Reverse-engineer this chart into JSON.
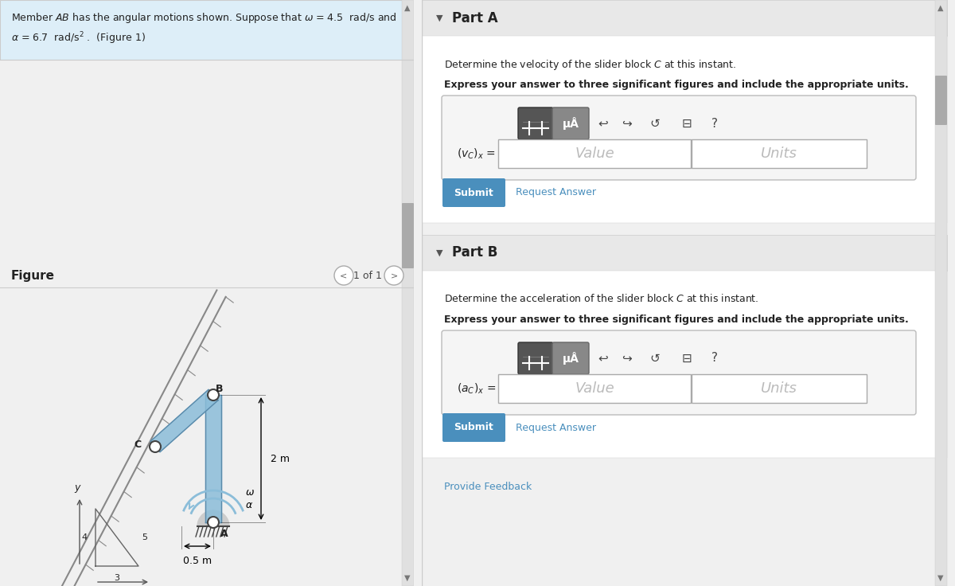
{
  "bg_color": "#f0f0f0",
  "left_panel_bg": "#ffffff",
  "right_panel_bg": "#f0f0f0",
  "header_bg": "#ddeef8",
  "problem_text_line1": "Member $AB$ has the angular motions shown. Suppose that $\\omega$ = 4.5  rad/s and",
  "problem_text_line2": "$\\alpha$ = 6.7  rad/s$^2$ .  (Figure 1)",
  "figure_label": "Figure",
  "nav_text": "1 of 1",
  "part_a_title": "Part A",
  "part_a_desc": "Determine the velocity of the slider block $C$ at this instant.",
  "part_a_bold": "Express your answer to three significant figures and include the appropriate units.",
  "part_a_label_a": "$(v_C)_x$",
  "part_b_title": "Part B",
  "part_b_desc": "Determine the acceleration of the slider block $C$ at this instant.",
  "part_b_bold": "Express your answer to three significant figures and include the appropriate units.",
  "part_b_label_a": "$(a_C)_x$",
  "submit_color": "#4a8fbd",
  "submit_text_color": "#ffffff",
  "link_color": "#4a8fbd",
  "dim_2m": "2 m",
  "dim_05m": "0.5 m",
  "member_color": "#8bbdd9",
  "member_edge_color": "#5a8aaa",
  "divider_color": "#cccccc",
  "part_header_bg": "#e8e8e8",
  "toolbar_bg": "#c8c8c8",
  "white": "#ffffff",
  "gray_text": "#aaaaaa",
  "dark_text": "#222222",
  "medium_text": "#555555"
}
